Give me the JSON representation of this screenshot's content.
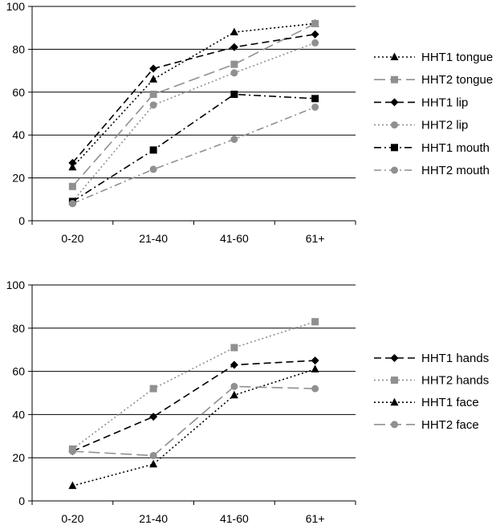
{
  "chart_data": [
    {
      "type": "line",
      "title": "",
      "xlabel": "",
      "ylabel": "",
      "categories": [
        "0-20",
        "21-40",
        "41-60",
        "61+"
      ],
      "ylim": [
        0,
        100
      ],
      "yticks": [
        "0",
        "20",
        "40",
        "60",
        "80",
        "100"
      ],
      "grid": true,
      "legend_position": "right",
      "series": [
        {
          "name": "HHT1 tongue",
          "values": [
            25,
            66,
            88,
            92
          ],
          "color": "#000000",
          "dash": "dotted",
          "marker": "triangle"
        },
        {
          "name": "HHT2 tongue",
          "values": [
            16,
            59,
            73,
            92
          ],
          "color": "#909090",
          "dash": "long-dash",
          "marker": "square"
        },
        {
          "name": "HHT1 lip",
          "values": [
            27,
            71,
            81,
            87
          ],
          "color": "#000000",
          "dash": "dash",
          "marker": "diamond"
        },
        {
          "name": "HHT2 lip",
          "values": [
            9,
            54,
            69,
            83
          ],
          "color": "#909090",
          "dash": "dotted",
          "marker": "circle"
        },
        {
          "name": "HHT1 mouth",
          "values": [
            9,
            33,
            59,
            57
          ],
          "color": "#000000",
          "dash": "dash-dot",
          "marker": "square"
        },
        {
          "name": "HHT2 mouth",
          "values": [
            8,
            24,
            38,
            53
          ],
          "color": "#909090",
          "dash": "dash-dot",
          "marker": "circle"
        }
      ]
    },
    {
      "type": "line",
      "title": "",
      "xlabel": "",
      "ylabel": "",
      "categories": [
        "0-20",
        "21-40",
        "41-60",
        "61+"
      ],
      "ylim": [
        0,
        100
      ],
      "yticks": [
        "0",
        "20",
        "40",
        "60",
        "80",
        "100"
      ],
      "grid": true,
      "legend_position": "right",
      "series": [
        {
          "name": "HHT1 hands",
          "values": [
            23,
            39,
            63,
            65
          ],
          "color": "#000000",
          "dash": "dash",
          "marker": "diamond"
        },
        {
          "name": "HHT2 hands",
          "values": [
            24,
            52,
            71,
            83
          ],
          "color": "#909090",
          "dash": "dotted",
          "marker": "square"
        },
        {
          "name": "HHT1 face",
          "values": [
            7,
            17,
            49,
            61
          ],
          "color": "#000000",
          "dash": "dotted",
          "marker": "triangle"
        },
        {
          "name": "HHT2 face",
          "values": [
            23,
            21,
            53,
            52
          ],
          "color": "#909090",
          "dash": "long-dash",
          "marker": "circle"
        }
      ]
    }
  ]
}
